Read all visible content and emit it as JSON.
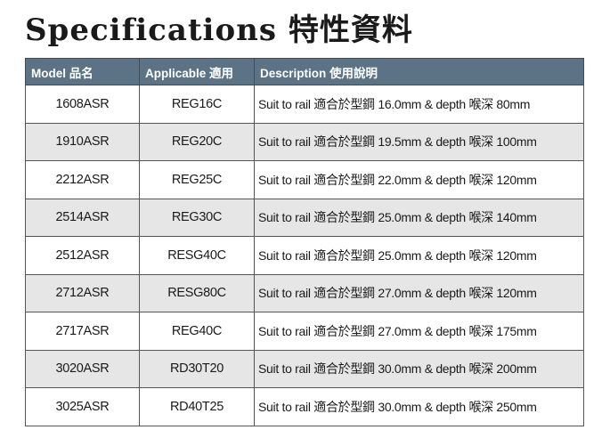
{
  "title": "Specifications 特性資料",
  "table": {
    "headers": [
      "Model 品名",
      "Applicable 適用",
      "Description 使用說明"
    ],
    "rows": [
      [
        "1608ASR",
        "REG16C",
        "Suit to rail 適合於型鋼 16.0mm & depth 喉深 80mm"
      ],
      [
        "1910ASR",
        "REG20C",
        "Suit to rail 適合於型鋼 19.5mm & depth 喉深 100mm"
      ],
      [
        "2212ASR",
        "REG25C",
        "Suit to rail 適合於型鋼 22.0mm & depth 喉深 120mm"
      ],
      [
        "2514ASR",
        "REG30C",
        "Suit to rail 適合於型鋼 25.0mm & depth 喉深 140mm"
      ],
      [
        "2512ASR",
        "RESG40C",
        "Suit to rail 適合於型鋼 25.0mm & depth 喉深 120mm"
      ],
      [
        "2712ASR",
        "RESG80C",
        "Suit to rail 適合於型鋼 27.0mm & depth 喉深 120mm"
      ],
      [
        "2717ASR",
        "REG40C",
        "Suit to rail 適合於型鋼 27.0mm & depth 喉深 175mm"
      ],
      [
        "3020ASR",
        "RD30T20",
        "Suit to rail 適合於型鋼 30.0mm & depth 喉深 200mm"
      ],
      [
        "3025ASR",
        "RD40T25",
        "Suit to rail 適合於型鋼 30.0mm & depth 喉深 250mm"
      ]
    ]
  },
  "colors": {
    "header_bg": "#5b7384",
    "alt_row_bg": "#e6e6e6"
  }
}
